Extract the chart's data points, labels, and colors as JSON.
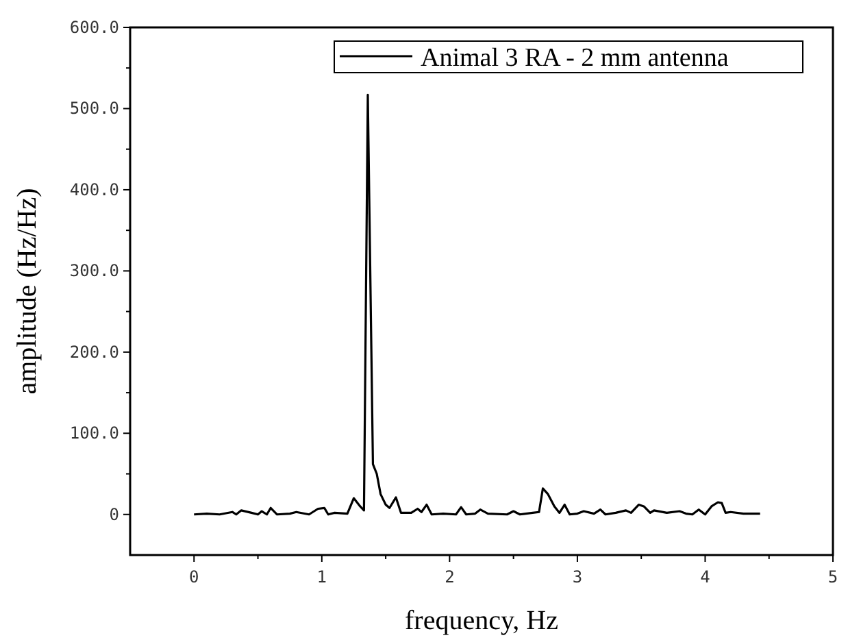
{
  "chart_data": {
    "type": "line",
    "xlabel": "frequency, Hz",
    "ylabel": "amplitude (Hz/Hz)",
    "legend": "top right",
    "xlim": [
      -0.5,
      5
    ],
    "ylim": [
      -50,
      600
    ],
    "xticks": [
      0,
      {
        "value": 0.5,
        "label": null
      },
      1,
      {
        "value": 1.5,
        "label": null
      },
      2,
      {
        "value": 2.5,
        "label": null
      },
      3,
      {
        "value": 3.5,
        "label": null
      },
      4,
      {
        "value": 4.5,
        "label": null
      },
      5
    ],
    "yticks": [
      0,
      {
        "value": 50,
        "label": null
      },
      {
        "value": 100,
        "label": "100.0"
      },
      {
        "value": 150,
        "label": null
      },
      {
        "value": 200,
        "label": "200.0"
      },
      {
        "value": 250,
        "label": null
      },
      {
        "value": 300,
        "label": "300.0"
      },
      {
        "value": 350,
        "label": null
      },
      {
        "value": 400,
        "label": "400.0"
      },
      {
        "value": 450,
        "label": null
      },
      {
        "value": 500,
        "label": "500.0"
      },
      {
        "value": 550,
        "label": null
      },
      {
        "value": 600,
        "label": "600.0"
      }
    ],
    "x": [
      0,
      0.1,
      0.2,
      0.3,
      0.33,
      0.37,
      0.45,
      0.5,
      0.53,
      0.57,
      0.6,
      0.65,
      0.75,
      0.8,
      0.9,
      0.97,
      1.02,
      1.05,
      1.1,
      1.2,
      1.25,
      1.3,
      1.33,
      1.36,
      1.4,
      1.43,
      1.46,
      1.5,
      1.53,
      1.58,
      1.62,
      1.7,
      1.75,
      1.78,
      1.82,
      1.86,
      1.95,
      2.05,
      2.09,
      2.13,
      2.2,
      2.24,
      2.3,
      2.45,
      2.5,
      2.55,
      2.65,
      2.7,
      2.73,
      2.77,
      2.82,
      2.86,
      2.9,
      2.94,
      3.0,
      3.05,
      3.13,
      3.18,
      3.22,
      3.3,
      3.38,
      3.42,
      3.48,
      3.52,
      3.57,
      3.6,
      3.7,
      3.8,
      3.85,
      3.9,
      3.95,
      4.0,
      4.05,
      4.1,
      4.13,
      4.16,
      4.2,
      4.3,
      4.43
    ],
    "series": [
      {
        "name": "Animal 3 RA - 2 mm antenna",
        "color": "#000000",
        "values": [
          0,
          1,
          0,
          3,
          0,
          5,
          2,
          0,
          4,
          0,
          8,
          0,
          1,
          3,
          0,
          7,
          8,
          0,
          2,
          1,
          20,
          10,
          5,
          517,
          62,
          50,
          25,
          12,
          8,
          21,
          2,
          2,
          7,
          3,
          12,
          0,
          1,
          0,
          9,
          0,
          1,
          6,
          1,
          0,
          4,
          0,
          2,
          3,
          32,
          25,
          10,
          2,
          12,
          0,
          1,
          4,
          1,
          6,
          0,
          2,
          5,
          2,
          12,
          10,
          2,
          5,
          2,
          4,
          1,
          0,
          6,
          0,
          10,
          15,
          14,
          2,
          3,
          1,
          1
        ]
      }
    ]
  }
}
